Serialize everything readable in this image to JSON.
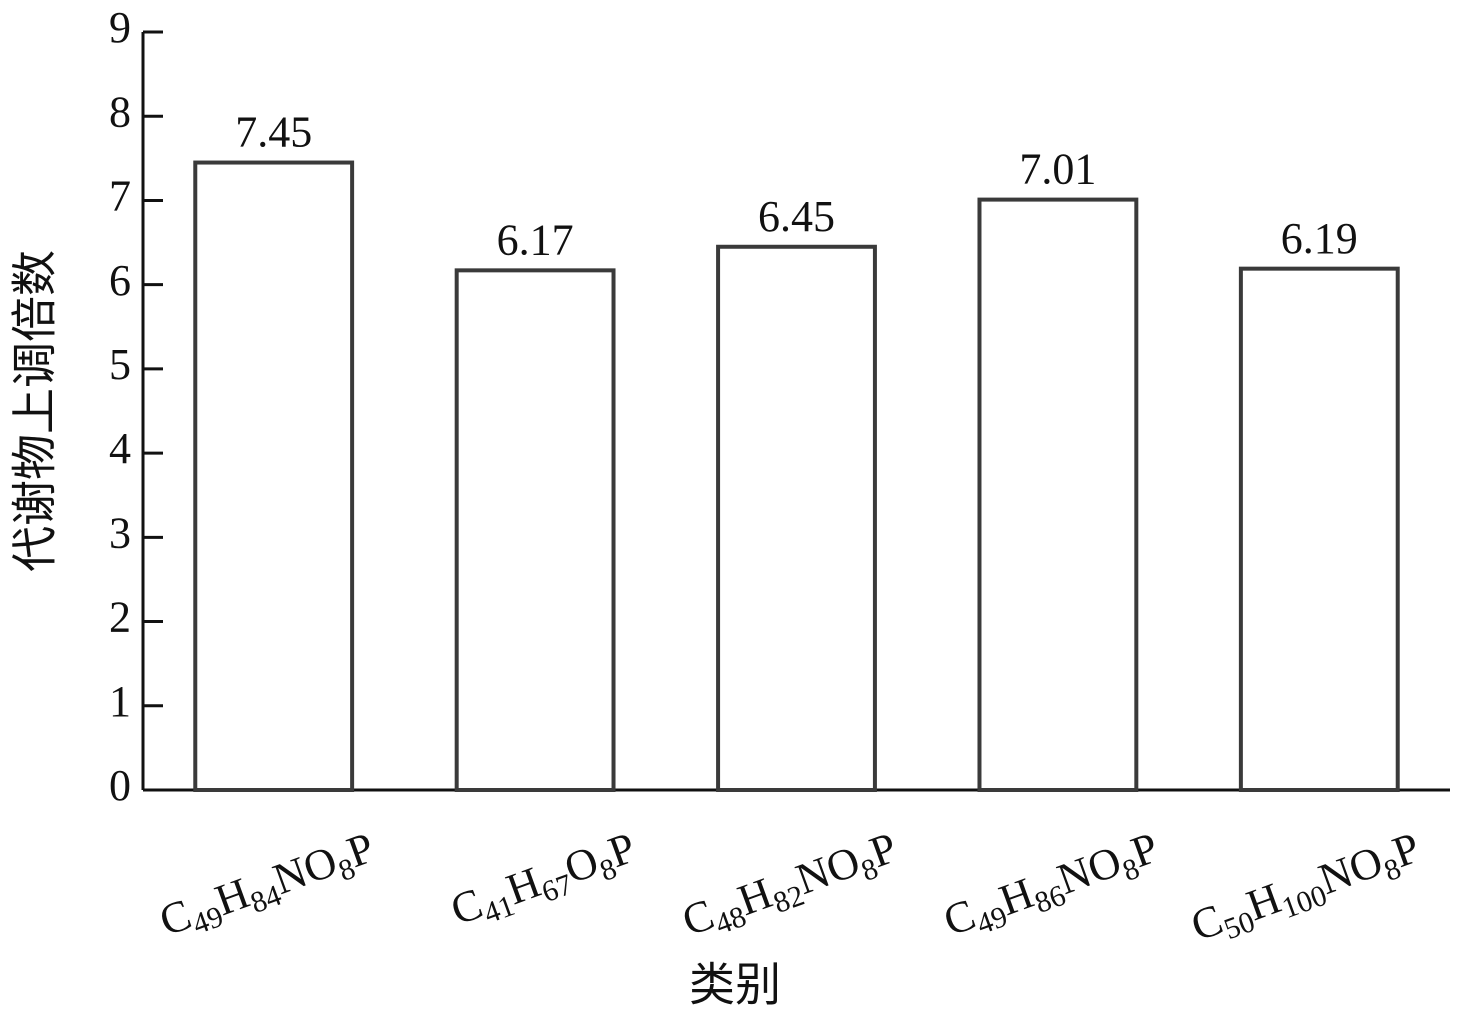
{
  "chart_data": {
    "type": "bar",
    "y_label": "代谢物上调倍数",
    "x_label": "类别",
    "categories": [
      "C49H84NO8P",
      "C41H67O8P",
      "C48H82NO8P",
      "C49H86NO8P",
      "C50H100NO8P"
    ],
    "values": [
      7.45,
      6.17,
      6.45,
      7.01,
      6.19
    ],
    "color": "#ffffff",
    "edgecolor": "#3a3a3a",
    "ylim": [
      0,
      9
    ],
    "yticks": [
      0,
      1,
      2,
      3,
      4,
      5,
      6,
      7,
      8,
      9
    ]
  }
}
